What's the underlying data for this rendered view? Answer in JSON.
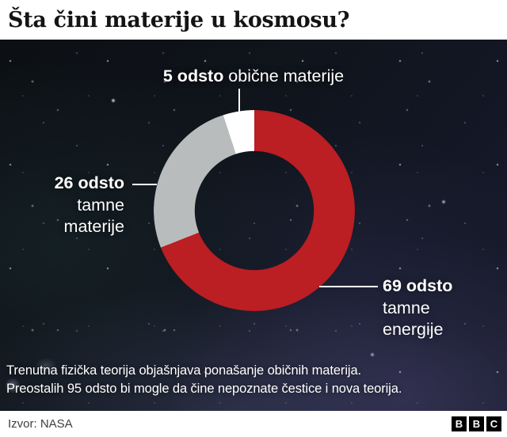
{
  "title": "Šta čini materije u kosmosu?",
  "chart_data": {
    "type": "pie",
    "subtype": "donut",
    "title": "Šta čini materije u kosmosu?",
    "unit": "odsto",
    "slices": [
      {
        "label": "tamne energije",
        "value": 69,
        "color": "#bb1e23",
        "display": "69 odsto tamne energije"
      },
      {
        "label": "tamne materije",
        "value": 26,
        "color": "#b9bcbc",
        "display": "26 odsto tamne materije"
      },
      {
        "label": "obične materije",
        "value": 5,
        "color": "#ffffff",
        "display": "5 odsto obične materije"
      }
    ],
    "start_angle_deg": 0,
    "direction": "clockwise",
    "donut_hole_ratio": 0.59,
    "legend_position": "callout-labels"
  },
  "labels": {
    "top": {
      "bold": "5 odsto",
      "rest": " obične materije"
    },
    "left": {
      "bold": "26 odsto",
      "line2": "tamne",
      "line3": "materije"
    },
    "right": {
      "bold": "69 odsto",
      "line2": "tamne",
      "line3": "energije"
    }
  },
  "annotation": {
    "line1": "Trenutna fizička teorija objašnjava ponašanje običnih materija.",
    "line2": "Preostalih 95 odsto bi mogle da čine nepoznate čestice i nova teorija."
  },
  "footer": {
    "source": "Izvor: NASA",
    "logo": [
      "B",
      "B",
      "C"
    ]
  },
  "colors": {
    "dark_energy_red": "#bb1e23",
    "dark_matter_gray": "#b9bcbc",
    "ordinary_matter_white": "#ffffff",
    "background_base": "#10141c"
  }
}
